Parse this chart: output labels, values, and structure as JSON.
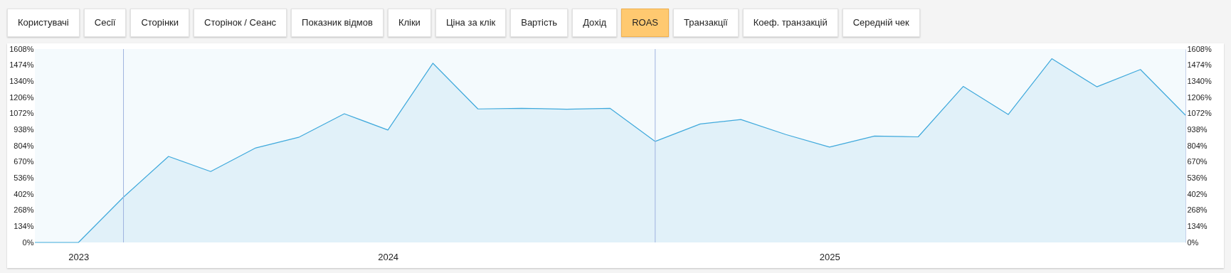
{
  "chart_data": {
    "type": "area",
    "annotations": [
      "Користувачі",
      "Сесії",
      "Сторінки",
      "Сторінок / Сеанс",
      "Показник відмов",
      "Кліки",
      "Ціна за клік",
      "Вартість",
      "Дохід",
      "ROAS",
      "Транзакції",
      "Коеф. транзакцій",
      "Середній чек"
    ],
    "x": [
      "2023-11",
      "2023-12",
      "2024-01",
      "2024-02",
      "2024-03",
      "2024-04",
      "2024-05",
      "2024-06",
      "2024-07",
      "2024-08",
      "2024-09",
      "2024-10",
      "2024-11",
      "2024-12",
      "2025-01",
      "2025-02",
      "2025-03",
      "2025-04",
      "2025-05",
      "2025-06",
      "2025-07",
      "2025-08",
      "2025-09",
      "2025-10",
      "2025-11",
      "2025-12",
      "2026-01"
    ],
    "series": [
      {
        "color": "#3fa9dc",
        "values": [
          0,
          0,
          377,
          715,
          590,
          786,
          876,
          1070,
          935,
          1490,
          1110,
          1115,
          1108,
          1115,
          840,
          985,
          1022,
          897,
          793,
          885,
          878,
          1297,
          1064,
          1528,
          1294,
          1438,
          1058
        ]
      }
    ],
    "xlim": [
      "2023-11",
      "2026-01"
    ],
    "xticks": [
      {
        "value": "2023-12",
        "label": "2023"
      },
      {
        "value": "2024-07",
        "label": "2024"
      },
      {
        "value": "2025-05",
        "label": "2025"
      }
    ],
    "ylim": [
      0,
      1608
    ],
    "yticks": [
      {
        "value": 0,
        "label": "0%"
      },
      {
        "value": 134,
        "label": "134%"
      },
      {
        "value": 268,
        "label": "268%"
      },
      {
        "value": 402,
        "label": "402%"
      },
      {
        "value": 536,
        "label": "536%"
      },
      {
        "value": 670,
        "label": "670%"
      },
      {
        "value": 804,
        "label": "804%"
      },
      {
        "value": 938,
        "label": "938%"
      },
      {
        "value": 1072,
        "label": "1072%"
      },
      {
        "value": 1206,
        "label": "1206%"
      },
      {
        "value": 1340,
        "label": "1340%"
      },
      {
        "value": 1474,
        "label": "1474%"
      },
      {
        "value": 1608,
        "label": "1608%"
      }
    ],
    "y2lim": [
      0,
      1608
    ],
    "y2ticks": [
      {
        "value": 0,
        "label": "0%"
      },
      {
        "value": 134,
        "label": "134%"
      },
      {
        "value": 268,
        "label": "268%"
      },
      {
        "value": 402,
        "label": "402%"
      },
      {
        "value": 536,
        "label": "536%"
      },
      {
        "value": 670,
        "label": "670%"
      },
      {
        "value": 804,
        "label": "804%"
      },
      {
        "value": 938,
        "label": "938%"
      },
      {
        "value": 1072,
        "label": "1072%"
      },
      {
        "value": 1206,
        "label": "1206%"
      },
      {
        "value": 1340,
        "label": "1340%"
      },
      {
        "value": 1474,
        "label": "1474%"
      },
      {
        "value": 1608,
        "label": "1608%"
      }
    ],
    "ref_lines": [
      {
        "axis": "x",
        "value": "2024-01",
        "color": "#9fb3df"
      },
      {
        "axis": "x",
        "value": "2025-01",
        "color": "#9fb3df"
      }
    ],
    "grid": false
  }
}
